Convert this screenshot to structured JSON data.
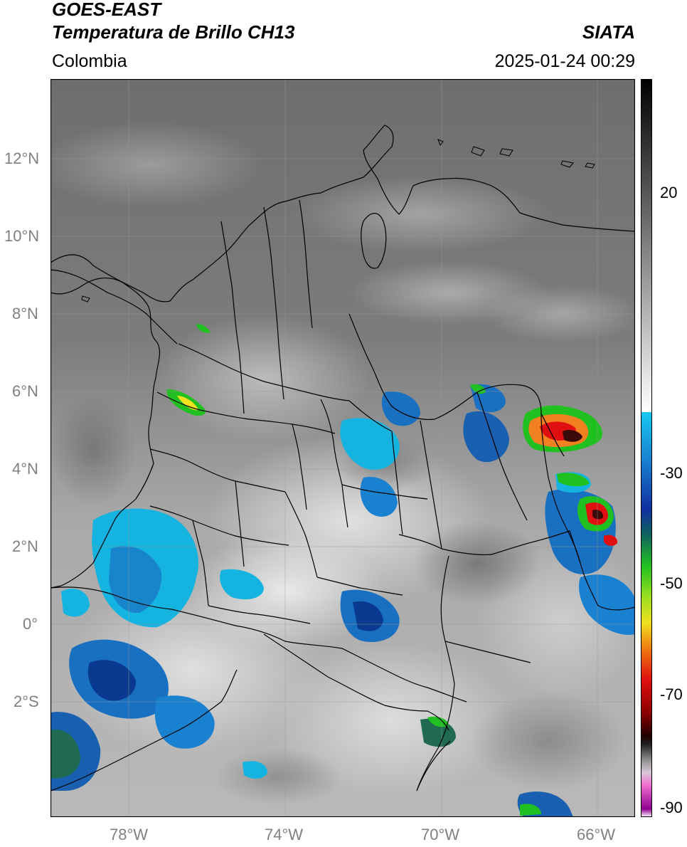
{
  "header": {
    "line1": "GOES-EAST",
    "line2": "Temperatura de Brillo CH13",
    "agency": "SIATA",
    "region": "Colombia",
    "timestamp": "2025-01-24 00:29"
  },
  "map": {
    "lat_ticks": [
      "12°N",
      "10°N",
      "8°N",
      "6°N",
      "4°N",
      "2°N",
      "0°",
      "2°S"
    ],
    "lon_ticks": [
      "78°W",
      "74°W",
      "70°W",
      "66°W"
    ],
    "colors": {
      "background_gray": "#6a6a6a",
      "boundary": "#000000",
      "cold_cyan": "#15b4e0",
      "cold_blue": "#1040a0",
      "deep_green": "#20c020",
      "core_red": "#e01010"
    }
  },
  "colorbar": {
    "ticks": [
      "20",
      "-30",
      "-50",
      "-70",
      "-90"
    ]
  }
}
